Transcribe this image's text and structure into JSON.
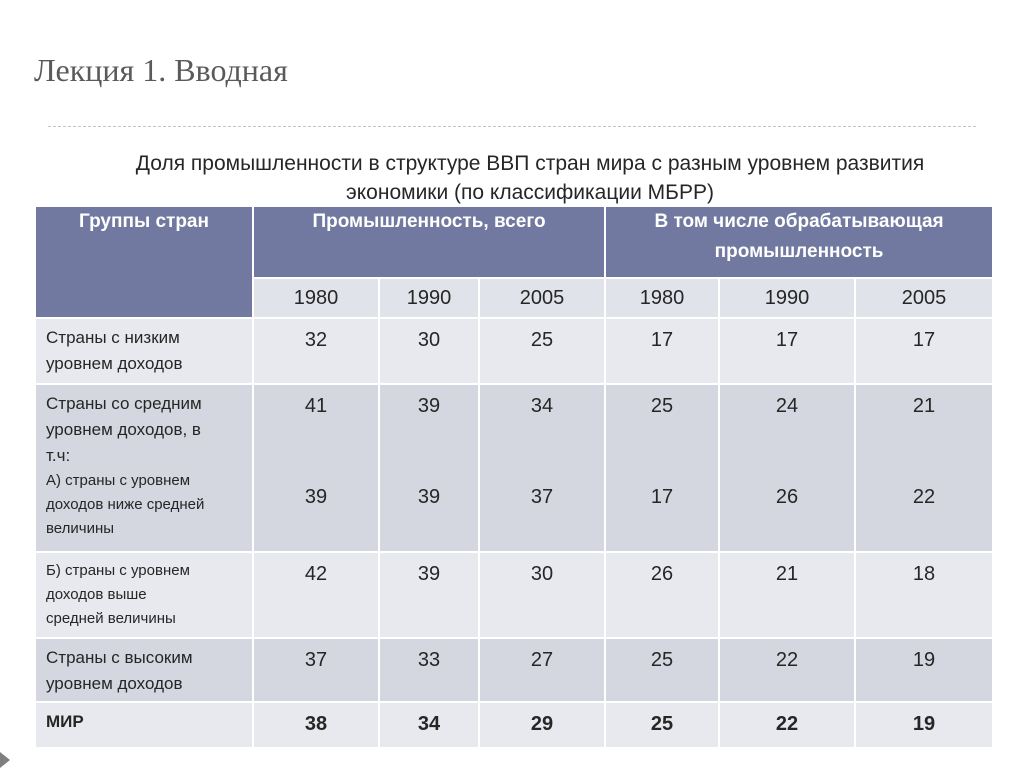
{
  "slide": {
    "title": "Лекция 1. Вводная"
  },
  "table": {
    "caption_line1": "Доля промышленности в структуре ВВП стран мира с разным уровнем развития",
    "caption_line2": "экономики (по классификации МБРР)",
    "header": {
      "groups": "Группы стран",
      "industry_total": "Промышленность, всего",
      "manufacturing_line1": "В том числе обрабатывающая",
      "manufacturing_line2": "промышленность"
    },
    "years": [
      "1980",
      "1990",
      "2005",
      "1980",
      "1990",
      "2005"
    ],
    "rows": [
      {
        "label_line1": "Страны с низким",
        "label_line2": "уровнем доходов",
        "values": [
          "32",
          "30",
          "25",
          "17",
          "17",
          "17"
        ]
      },
      {
        "label_line1": "Страны со средним",
        "label_line2": "уровнем доходов, в",
        "label_line3": "т.ч:",
        "sub_line1": "А) страны с уровнем",
        "sub_line2": "доходов ниже средней",
        "sub_line3": "величины",
        "values": [
          "41",
          "39",
          "34",
          "25",
          "24",
          "21"
        ],
        "values_sub": [
          "39",
          "39",
          "37",
          "17",
          "26",
          "22"
        ]
      },
      {
        "sub_line1": "Б) страны с уровнем",
        "sub_line2": "доходов выше",
        "sub_line3": "средней величины",
        "values": [
          "42",
          "39",
          "30",
          "26",
          "21",
          "18"
        ]
      },
      {
        "label_line1": "Страны с высоким",
        "label_line2": "уровнем доходов",
        "values": [
          "37",
          "33",
          "27",
          "25",
          "22",
          "19"
        ]
      },
      {
        "label_line1": "МИР",
        "values": [
          "38",
          "34",
          "29",
          "25",
          "22",
          "19"
        ]
      }
    ]
  }
}
